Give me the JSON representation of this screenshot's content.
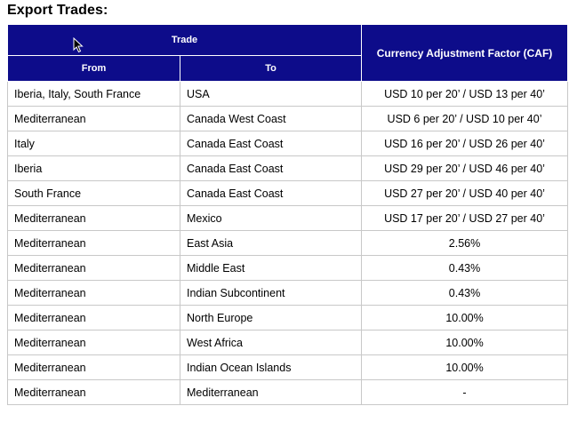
{
  "title": "Export Trades:",
  "headers": {
    "trade": "Trade",
    "from": "From",
    "to": "To",
    "caf": "Currency Adjustment Factor (CAF)"
  },
  "rows": [
    {
      "from": "Iberia, Italy, South France",
      "to": "USA",
      "caf": "USD 10 per 20’ / USD 13 per 40’"
    },
    {
      "from": "Mediterranean",
      "to": "Canada West Coast",
      "caf": "USD 6 per 20’ / USD 10 per 40’"
    },
    {
      "from": "Italy",
      "to": "Canada East Coast",
      "caf": "USD 16 per 20’ / USD 26 per 40’"
    },
    {
      "from": "Iberia",
      "to": "Canada East Coast",
      "caf": "USD 29 per 20’ / USD 46 per 40’"
    },
    {
      "from": "South France",
      "to": "Canada East Coast",
      "caf": "USD 27 per 20’ / USD 40 per 40’"
    },
    {
      "from": "Mediterranean",
      "to": "Mexico",
      "caf": "USD 17 per 20’ / USD 27 per 40’"
    },
    {
      "from": "Mediterranean",
      "to": "East Asia",
      "caf": "2.56%"
    },
    {
      "from": "Mediterranean",
      "to": "Middle East",
      "caf": "0.43%"
    },
    {
      "from": "Mediterranean",
      "to": "Indian Subcontinent",
      "caf": "0.43%"
    },
    {
      "from": "Mediterranean",
      "to": "North Europe",
      "caf": "10.00%"
    },
    {
      "from": "Mediterranean",
      "to": "West Africa",
      "caf": "10.00%"
    },
    {
      "from": "Mediterranean",
      "to": "Indian Ocean Islands",
      "caf": "10.00%"
    },
    {
      "from": "Mediterranean",
      "to": "Mediterranean",
      "caf": "-"
    }
  ],
  "colors": {
    "header_bg": "#0d0c8a",
    "header_text": "#ffffff",
    "border": "#c8c8c8"
  },
  "icons": {
    "cursor": "mouse-pointer-icon"
  }
}
